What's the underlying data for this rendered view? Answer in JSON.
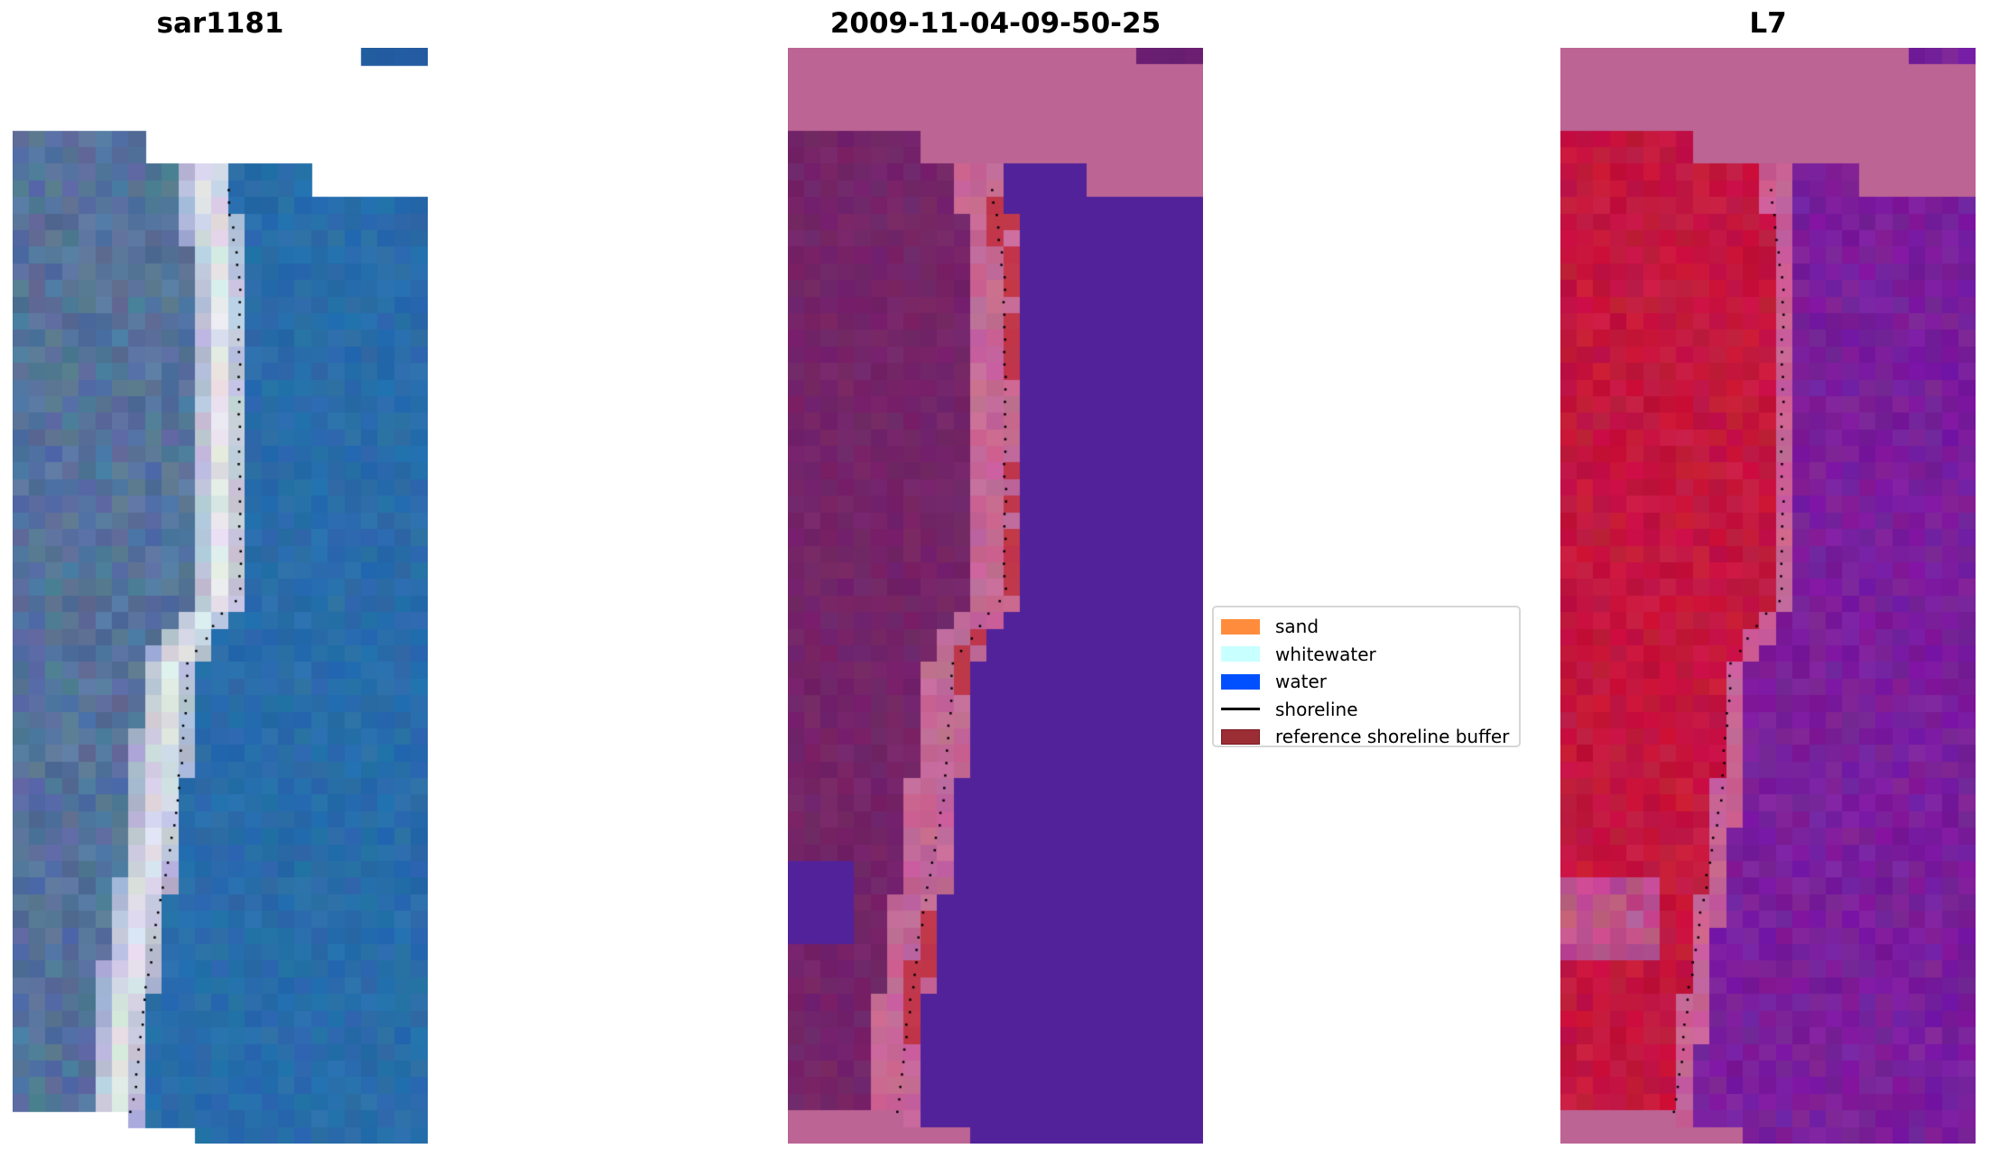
{
  "panels": [
    {
      "title": "sar1181",
      "kind": "rgb"
    },
    {
      "title": "2009-11-04-09-50-25",
      "kind": "classified"
    },
    {
      "title": "L7",
      "kind": "mndwi"
    }
  ],
  "legend": {
    "items": [
      {
        "label": "sand",
        "type": "patch",
        "color": "#ff8c3c"
      },
      {
        "label": "whitewater",
        "type": "patch",
        "color": "#c8ffff"
      },
      {
        "label": "water",
        "type": "patch",
        "color": "#0050ff"
      },
      {
        "label": "shoreline",
        "type": "line",
        "color": "#000000"
      },
      {
        "label": "reference shoreline buffer",
        "type": "patch",
        "color": "#9b2d35"
      }
    ]
  },
  "colors": {
    "nodata_pink": "#bc6494",
    "water_class": "#52229a",
    "buffer_red": "#c0364a"
  }
}
